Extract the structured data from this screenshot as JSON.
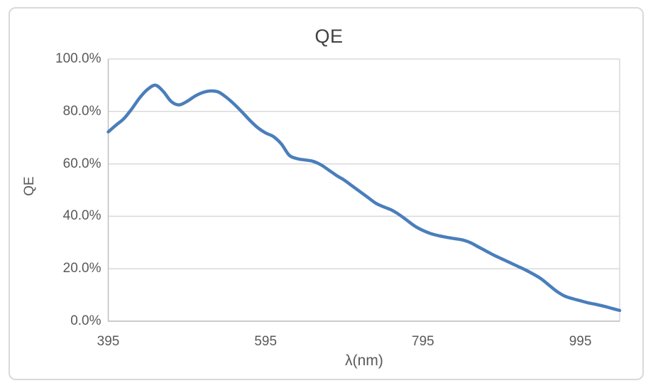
{
  "colors": {
    "line": "#4a7ebb",
    "gridline": "#d9d9d9",
    "axis_line": "#bfbfbf",
    "tick_text": "#595959",
    "title_text": "#404040",
    "frame_border": "#d9d9d9",
    "background": "#ffffff"
  },
  "chart_data": {
    "type": "line",
    "title": "QE",
    "xlabel": "λ(nm)",
    "ylabel": "QE",
    "legend_position": "none",
    "grid": "horizontal-only",
    "smooth": true,
    "units": "percent",
    "xlim": [
      395,
      1045
    ],
    "ylim": [
      0,
      100
    ],
    "x_tick_labels": [
      "395",
      "595",
      "795",
      "995"
    ],
    "x_tick_values": [
      395,
      595,
      795,
      995
    ],
    "y_tick_labels": [
      "100.0%",
      "80.0%",
      "60.0%",
      "40.0%",
      "20.0%",
      "0.0%"
    ],
    "y_tick_values": [
      100,
      80,
      60,
      40,
      20,
      0
    ],
    "x": [
      395,
      405,
      415,
      425,
      435,
      445,
      455,
      465,
      475,
      485,
      495,
      505,
      515,
      525,
      535,
      545,
      555,
      565,
      575,
      585,
      595,
      605,
      615,
      625,
      635,
      645,
      655,
      665,
      675,
      685,
      695,
      705,
      715,
      725,
      735,
      745,
      755,
      765,
      775,
      785,
      795,
      805,
      815,
      825,
      835,
      845,
      855,
      865,
      875,
      885,
      895,
      905,
      915,
      925,
      935,
      945,
      955,
      965,
      975,
      985,
      995,
      1005,
      1015,
      1025,
      1035,
      1045
    ],
    "values": [
      72.2,
      74.8,
      77.3,
      81.0,
      85.2,
      88.4,
      90.0,
      87.6,
      83.8,
      82.5,
      83.8,
      85.8,
      87.2,
      87.8,
      87.4,
      85.4,
      82.8,
      79.8,
      76.6,
      73.8,
      71.8,
      70.4,
      67.6,
      63.3,
      62.0,
      61.5,
      61.0,
      59.7,
      57.7,
      55.6,
      53.8,
      51.6,
      49.4,
      47.2,
      45.0,
      43.6,
      42.4,
      40.6,
      38.4,
      36.2,
      34.6,
      33.4,
      32.6,
      32.0,
      31.5,
      31.0,
      30.0,
      28.4,
      26.8,
      25.2,
      23.8,
      22.4,
      21.0,
      19.6,
      18.0,
      16.2,
      13.8,
      11.4,
      9.6,
      8.6,
      7.8,
      7.0,
      6.4,
      5.7,
      4.9,
      4.1
    ]
  }
}
